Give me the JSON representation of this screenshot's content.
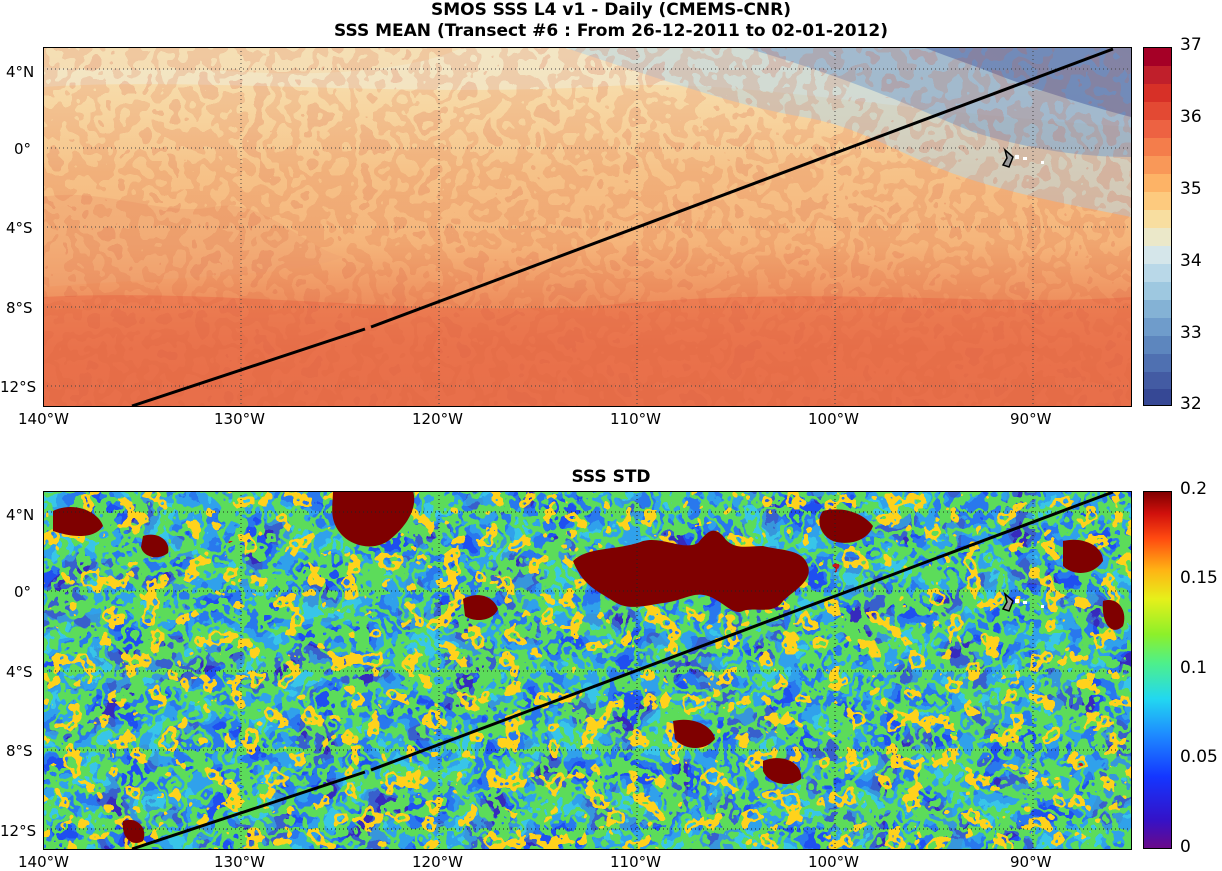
{
  "figure": {
    "title_line1": "SMOS SSS L4 v1 - Daily (CMEMS-CNR)",
    "title_line2": "SSS MEAN (Transect #6 : From 26-12-2011 to 02-01-2012)",
    "std_title": "SSS STD"
  },
  "axes": {
    "lon_ticks": [
      "140°W",
      "130°W",
      "120°W",
      "110°W",
      "100°W",
      "90°W"
    ],
    "lat_ticks": [
      "4°N",
      "0°",
      "4°S",
      "8°S",
      "12°S"
    ]
  },
  "colorbars": {
    "mean": {
      "ticks": [
        "37",
        "36",
        "35",
        "34",
        "33",
        "32"
      ],
      "range": [
        32,
        37
      ],
      "colormap": "RdYlBu_r"
    },
    "std": {
      "ticks": [
        "0.2",
        "0.15",
        "0.1",
        "0.05",
        "0"
      ],
      "range": [
        0,
        0.2
      ],
      "colormap": "jet"
    }
  },
  "map": {
    "lon_range": [
      -140,
      -85
    ],
    "lat_range": [
      -13,
      5
    ],
    "grid": "dotted",
    "transect": {
      "start": [
        -135.5,
        -13
      ],
      "end": [
        -85.5,
        5
      ],
      "color": "#000000"
    },
    "land_feature": "Galapagos Islands"
  }
}
